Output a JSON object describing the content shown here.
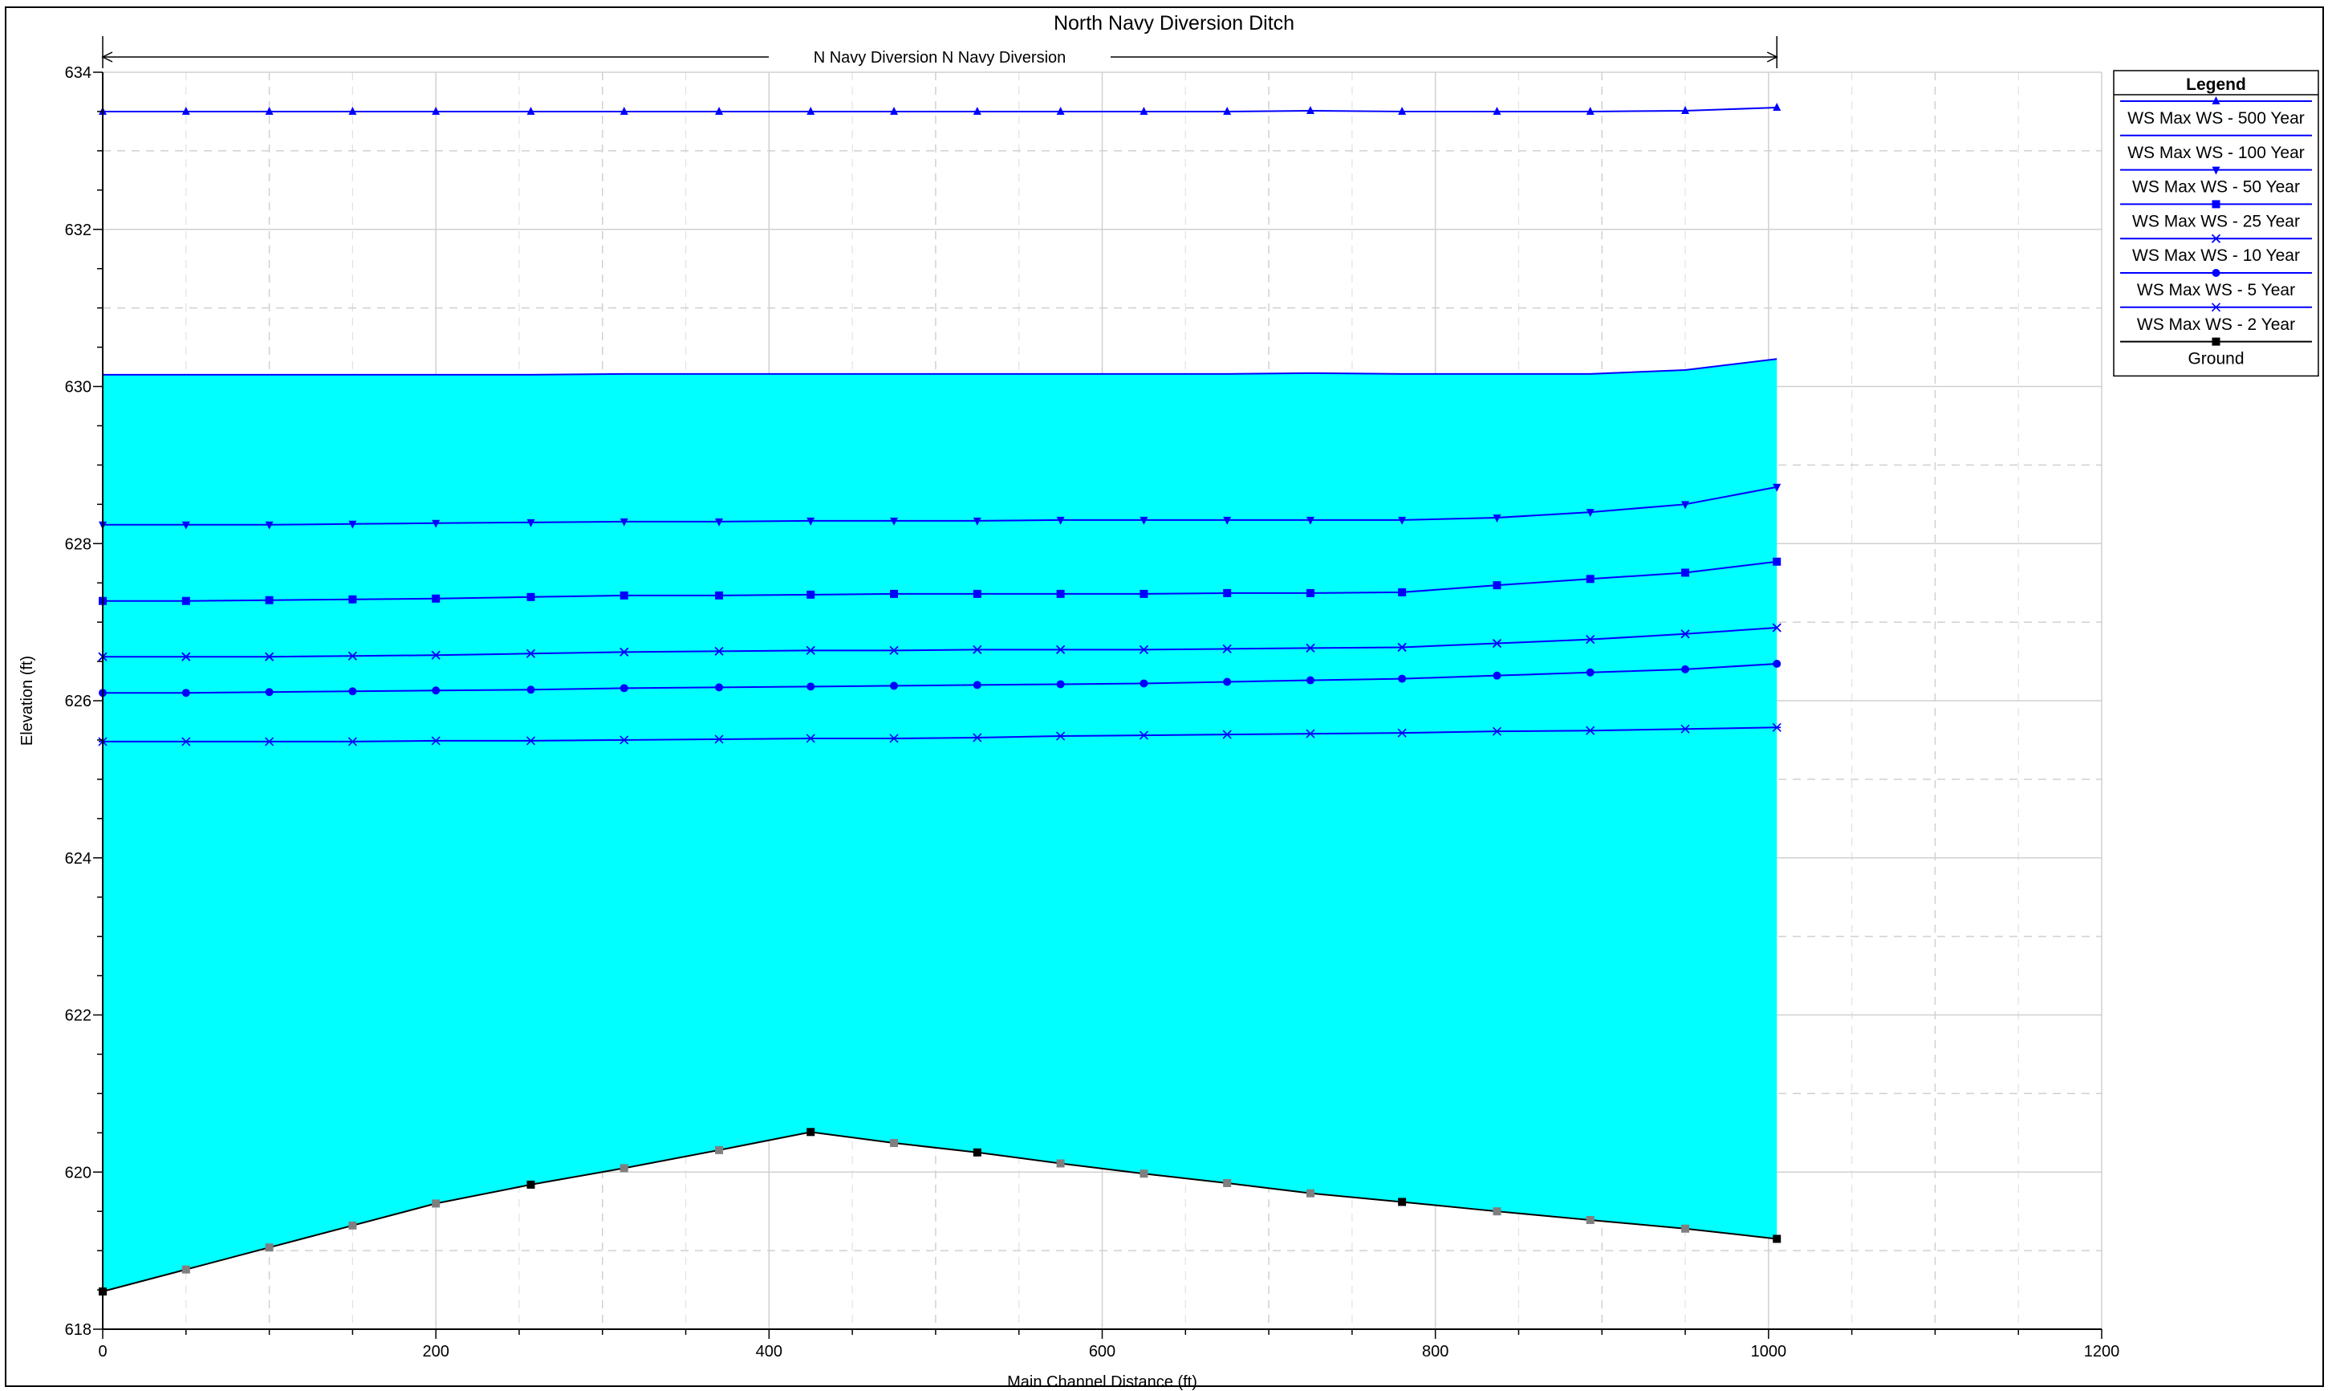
{
  "chart_data": {
    "type": "area",
    "title": "North Navy Diversion Ditch",
    "reach_label": "N Navy Diversion N Navy Diversion",
    "xlabel": "Main Channel Distance (ft)",
    "ylabel": "Elevation (ft)",
    "xlim": [
      0,
      1200
    ],
    "ylim": [
      618,
      634
    ],
    "x_ticks": [
      0,
      200,
      400,
      600,
      800,
      1000,
      1200
    ],
    "y_ticks": [
      618,
      620,
      622,
      624,
      626,
      628,
      630,
      632,
      634
    ],
    "grid": true,
    "legend_position": "top-right",
    "legend_title": "Legend",
    "fill_color": "#00FFFF",
    "x": [
      0,
      50,
      100,
      150,
      200,
      257,
      313,
      370,
      425,
      475,
      525,
      575,
      625,
      675,
      725,
      780,
      837,
      893,
      950,
      1005
    ],
    "series": [
      {
        "name": "WS  Max WS - 500 Year",
        "color": "#0000FF",
        "marker": "triangle-up",
        "values": [
          633.5,
          633.5,
          633.5,
          633.5,
          633.5,
          633.5,
          633.5,
          633.5,
          633.5,
          633.5,
          633.5,
          633.5,
          633.5,
          633.5,
          633.51,
          633.5,
          633.5,
          633.5,
          633.51,
          633.55
        ]
      },
      {
        "name": "WS  Max WS - 100 Year",
        "color": "#0000FF",
        "marker": "none",
        "values": [
          630.15,
          630.15,
          630.15,
          630.15,
          630.15,
          630.15,
          630.16,
          630.16,
          630.16,
          630.16,
          630.16,
          630.16,
          630.16,
          630.16,
          630.17,
          630.16,
          630.16,
          630.16,
          630.21,
          630.35
        ]
      },
      {
        "name": "WS  Max WS - 50 Year",
        "color": "#0000FF",
        "marker": "triangle-down",
        "values": [
          628.24,
          628.24,
          628.24,
          628.25,
          628.26,
          628.27,
          628.28,
          628.28,
          628.29,
          628.29,
          628.29,
          628.3,
          628.3,
          628.3,
          628.3,
          628.3,
          628.33,
          628.4,
          628.5,
          628.72
        ]
      },
      {
        "name": "WS  Max WS - 25 Year",
        "color": "#0000FF",
        "marker": "square",
        "values": [
          627.27,
          627.27,
          627.28,
          627.29,
          627.3,
          627.32,
          627.34,
          627.34,
          627.35,
          627.36,
          627.36,
          627.36,
          627.36,
          627.37,
          627.37,
          627.38,
          627.47,
          627.55,
          627.63,
          627.77
        ]
      },
      {
        "name": "WS  Max WS - 10 Year",
        "color": "#0000FF",
        "marker": "x",
        "values": [
          626.56,
          626.56,
          626.56,
          626.57,
          626.58,
          626.6,
          626.62,
          626.63,
          626.64,
          626.64,
          626.65,
          626.65,
          626.65,
          626.66,
          626.67,
          626.68,
          626.73,
          626.78,
          626.85,
          626.93
        ]
      },
      {
        "name": "WS  Max WS - 5 Year",
        "color": "#0000FF",
        "marker": "circle",
        "values": [
          626.1,
          626.1,
          626.11,
          626.12,
          626.13,
          626.14,
          626.16,
          626.17,
          626.18,
          626.19,
          626.2,
          626.21,
          626.22,
          626.24,
          626.26,
          626.28,
          626.32,
          626.36,
          626.4,
          626.47
        ]
      },
      {
        "name": "WS  Max WS - 2 Year",
        "color": "#0000FF",
        "marker": "asterisk",
        "values": [
          625.48,
          625.48,
          625.48,
          625.48,
          625.49,
          625.49,
          625.5,
          625.51,
          625.52,
          625.52,
          625.53,
          625.55,
          625.56,
          625.57,
          625.58,
          625.59,
          625.61,
          625.62,
          625.64,
          625.66
        ]
      },
      {
        "name": "Ground",
        "color": "#000000",
        "marker": "square",
        "values": [
          618.48,
          618.76,
          619.04,
          619.32,
          619.6,
          619.84,
          620.05,
          620.28,
          620.51,
          620.37,
          620.25,
          620.11,
          619.98,
          619.86,
          619.73,
          619.62,
          619.5,
          619.39,
          619.28,
          619.15
        ]
      }
    ]
  }
}
